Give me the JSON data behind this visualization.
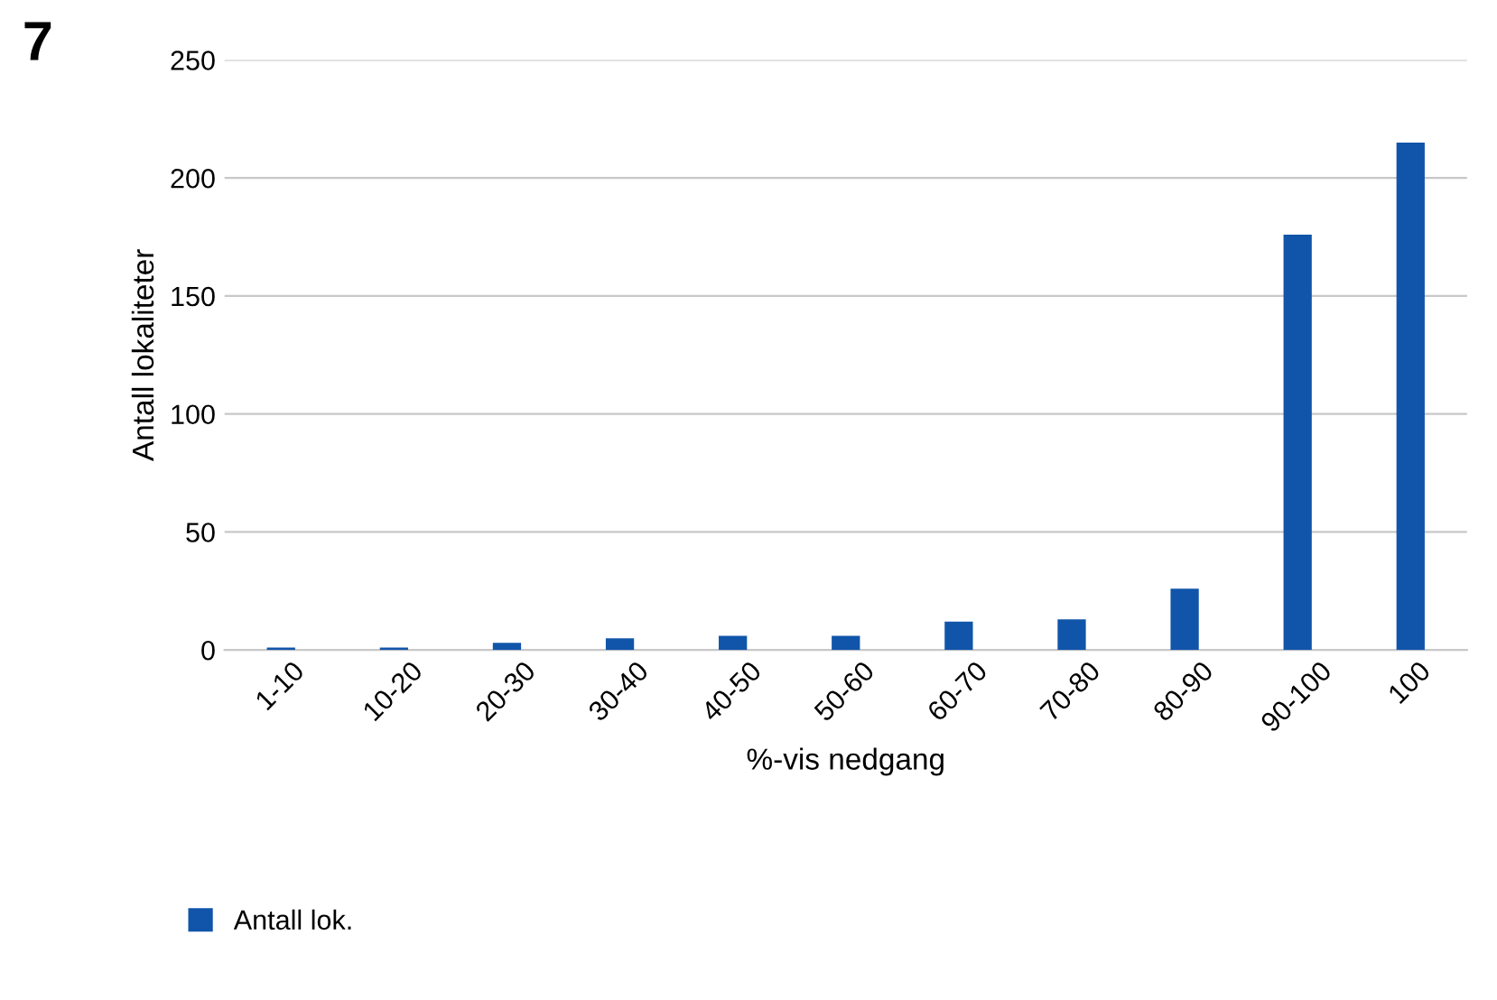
{
  "chart_data": {
    "type": "bar",
    "xlabel": "%-vis nedgang",
    "ylabel": "Antall lokaliteter",
    "annotations": [
      "7"
    ],
    "categories": [
      "1-10",
      "10-20",
      "20-30",
      "30-40",
      "40-50",
      "50-60",
      "60-70",
      "70-80",
      "80-90",
      "90-100",
      "100"
    ],
    "series": [
      {
        "name": "Antall lok.",
        "color": "#1155aa",
        "values": [
          1,
          1,
          3,
          5,
          6,
          6,
          12,
          13,
          26,
          176,
          215
        ]
      }
    ],
    "ylim": [
      0,
      250
    ],
    "yticks": [
      0,
      50,
      100,
      150,
      200,
      250
    ],
    "grid": "y",
    "legend": "bottom left"
  }
}
